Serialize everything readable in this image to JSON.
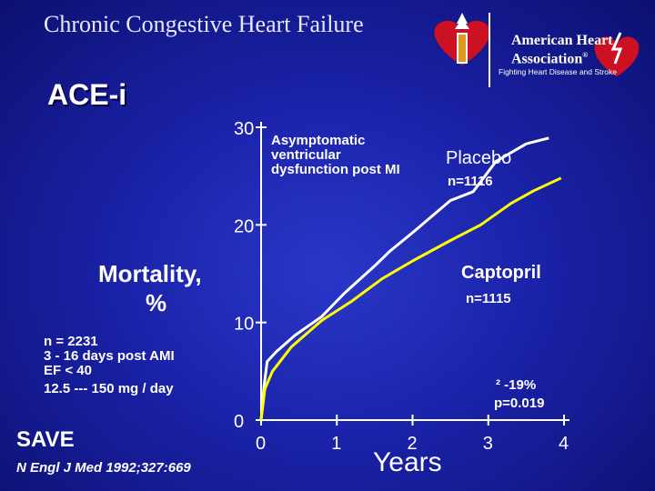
{
  "slide": {
    "title": "Chronic Congestive Heart Failure",
    "section": "ACE-i"
  },
  "logo": {
    "org_line1": "American Heart",
    "org_line2": "Association",
    "registered_mark": "®",
    "tagline": "Fighting Heart Disease and Stroke",
    "icon": "heart-torch-icon"
  },
  "study": {
    "info_lines": [
      "n = 2231",
      "3 - 16 days post AMI",
      "EF < 40",
      "12.5 --- 150 mg  / day"
    ],
    "trial_name": "SAVE",
    "citation": "N Engl J Med 1992;327:669"
  },
  "chart_data": {
    "type": "line",
    "title": "",
    "xlabel": "Years",
    "ylabel_lines": [
      "Mortality,",
      "%"
    ],
    "xlim": [
      0,
      4
    ],
    "ylim": [
      0,
      30
    ],
    "xticks": [
      0,
      1,
      2,
      3,
      4
    ],
    "yticks": [
      0,
      10,
      20,
      30
    ],
    "grid": false,
    "annotation": [
      "Asymptomatic",
      " ventricular",
      "dysfunction post MI"
    ],
    "result_lines": [
      "² -19%",
      "p=0.019"
    ],
    "series": [
      {
        "name": "Placebo",
        "n_label": "n=1116",
        "color": "#ffffff",
        "points": [
          [
            0,
            0
          ],
          [
            0.04,
            3.5
          ],
          [
            0.08,
            6.0
          ],
          [
            0.2,
            7.0
          ],
          [
            0.45,
            8.7
          ],
          [
            0.8,
            10.6
          ],
          [
            1.1,
            13.0
          ],
          [
            1.5,
            15.8
          ],
          [
            1.7,
            17.3
          ],
          [
            2.0,
            19.2
          ],
          [
            2.5,
            22.5
          ],
          [
            2.8,
            23.4
          ],
          [
            3.1,
            26.5
          ],
          [
            3.5,
            28.3
          ],
          [
            3.8,
            28.9
          ]
        ]
      },
      {
        "name": "Captopril",
        "n_label": "n=1115",
        "color": "#ffff00",
        "points": [
          [
            0,
            0
          ],
          [
            0.05,
            3.2
          ],
          [
            0.15,
            5.0
          ],
          [
            0.4,
            7.5
          ],
          [
            0.8,
            10.2
          ],
          [
            1.2,
            12.2
          ],
          [
            1.6,
            14.5
          ],
          [
            2.0,
            16.3
          ],
          [
            2.5,
            18.4
          ],
          [
            2.9,
            20.0
          ],
          [
            3.3,
            22.2
          ],
          [
            3.6,
            23.5
          ],
          [
            3.96,
            24.8
          ]
        ]
      }
    ]
  }
}
